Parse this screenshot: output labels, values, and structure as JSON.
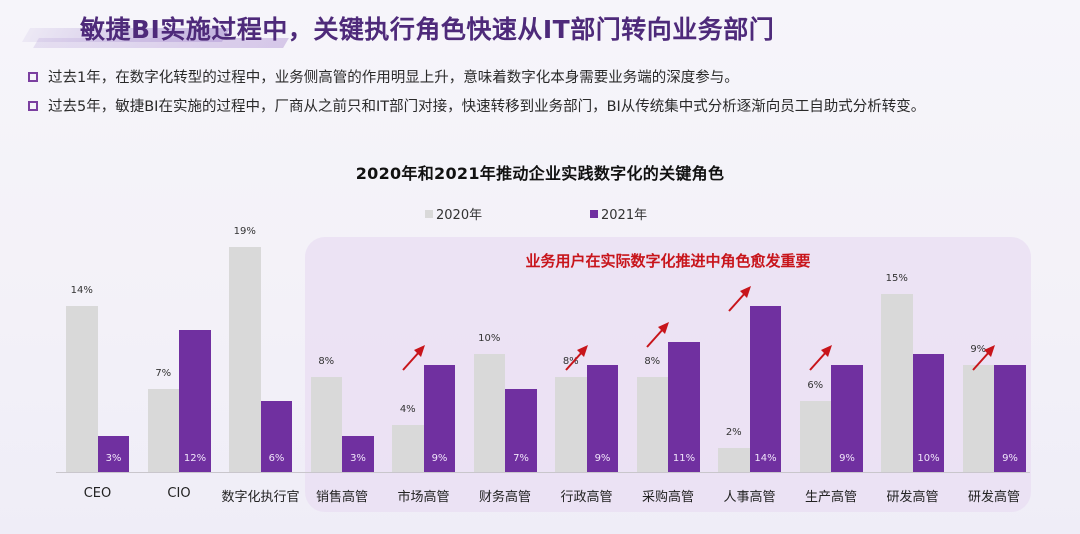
{
  "header": {
    "title": "敏捷BI实施过程中，关键执行角色快速从IT部门转向业务部门"
  },
  "bullets": [
    "过去1年，在数字化转型的过程中，业务侧高管的作用明显上升，意味着数字化本身需要业务端的深度参与。",
    "过去5年，敏捷BI在实施的过程中，厂商从之前只和IT部门对接，快速转移到业务部门，BI从传统集中式分析逐渐向员工自助式分析转变。"
  ],
  "colors": {
    "title": "#4e2a7a",
    "bar_2020": "#d9d9d9",
    "bar_2021": "#7030a0",
    "highlight_text": "#c8151b",
    "arrow": "#c8151b",
    "bullet_box": "#7b3fa0"
  },
  "highlight": {
    "text": "业务用户在实际数字化推进中角色愈发重要"
  },
  "chart_data": {
    "type": "bar",
    "title": "2020年和2021年推动企业实践数字化的关键角色",
    "xlabel": "",
    "ylabel": "",
    "ylim": [
      0,
      20
    ],
    "grid": false,
    "legend_position": "top",
    "categories": [
      "CEO",
      "CIO",
      "数字化执行官",
      "销售高管",
      "市场高管",
      "财务高管",
      "行政高管",
      "采购高管",
      "人事高管",
      "生产高管",
      "研发高管",
      "研发高管"
    ],
    "series": [
      {
        "name": "2020年",
        "values": [
          14,
          7,
          19,
          8,
          4,
          10,
          8,
          8,
          2,
          6,
          15,
          9
        ]
      },
      {
        "name": "2021年",
        "values": [
          3,
          12,
          6,
          3,
          9,
          7,
          9,
          11,
          14,
          9,
          10,
          9
        ]
      }
    ],
    "value_labels": {
      "2020": [
        "14%",
        "7%",
        "19%",
        "8%",
        "4%",
        "10%",
        "8%",
        "8%",
        "2%",
        "6%",
        "15%",
        "9%"
      ],
      "2021": [
        "3%",
        "12%",
        "6%",
        "3%",
        "9%",
        "7%",
        "9%",
        "11%",
        "14%",
        "9%",
        "10%",
        "9%"
      ]
    },
    "annotations": [
      {
        "text": "业务用户在实际数字化推进中角色愈发重要",
        "spans_categories": [
          3,
          11
        ]
      },
      {
        "type": "up-arrow",
        "categories": [
          4,
          6,
          7,
          8,
          9,
          11
        ]
      }
    ]
  }
}
